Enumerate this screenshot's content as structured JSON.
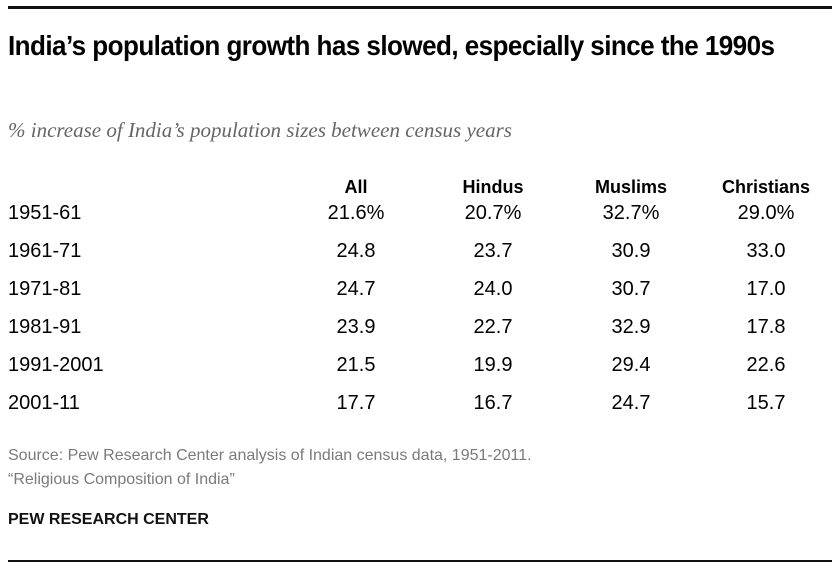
{
  "title": "India’s population growth has slowed, especially since the 1990s",
  "subtitle": "% increase of India’s population sizes between census years",
  "chart_data": {
    "type": "table",
    "title": "India’s population growth has slowed, especially since the 1990s",
    "subtitle": "% increase of India’s population sizes between census years",
    "columns": [
      "All",
      "Hindus",
      "Muslims",
      "Christians"
    ],
    "rows": [
      {
        "period": "1951-61",
        "values": [
          "21.6%",
          "20.7%",
          "32.7%",
          "29.0%"
        ]
      },
      {
        "period": "1961-71",
        "values": [
          "24.8",
          "23.7",
          "30.9",
          "33.0"
        ]
      },
      {
        "period": "1971-81",
        "values": [
          "24.7",
          "24.0",
          "30.7",
          "17.0"
        ]
      },
      {
        "period": "1981-91",
        "values": [
          "23.9",
          "22.7",
          "32.9",
          "17.8"
        ]
      },
      {
        "period": "1991-2001",
        "values": [
          "21.5",
          "19.9",
          "29.4",
          "22.6"
        ]
      },
      {
        "period": "2001-11",
        "values": [
          "17.7",
          "16.7",
          "24.7",
          "15.7"
        ]
      }
    ],
    "series": [
      {
        "name": "All",
        "values": [
          21.6,
          24.8,
          24.7,
          23.9,
          21.5,
          17.7
        ]
      },
      {
        "name": "Hindus",
        "values": [
          20.7,
          23.7,
          24.0,
          22.7,
          19.9,
          16.7
        ]
      },
      {
        "name": "Muslims",
        "values": [
          32.7,
          30.9,
          30.7,
          32.9,
          29.4,
          24.7
        ]
      },
      {
        "name": "Christians",
        "values": [
          29.0,
          33.0,
          17.0,
          17.8,
          22.6,
          15.7
        ]
      }
    ],
    "categories": [
      "1951-61",
      "1961-71",
      "1971-81",
      "1981-91",
      "1991-2001",
      "2001-11"
    ]
  },
  "footer": {
    "source": "Source: Pew Research Center analysis of Indian census data, 1951-2011.",
    "report": "“Religious Composition of India”",
    "brand": "PEW RESEARCH CENTER"
  }
}
